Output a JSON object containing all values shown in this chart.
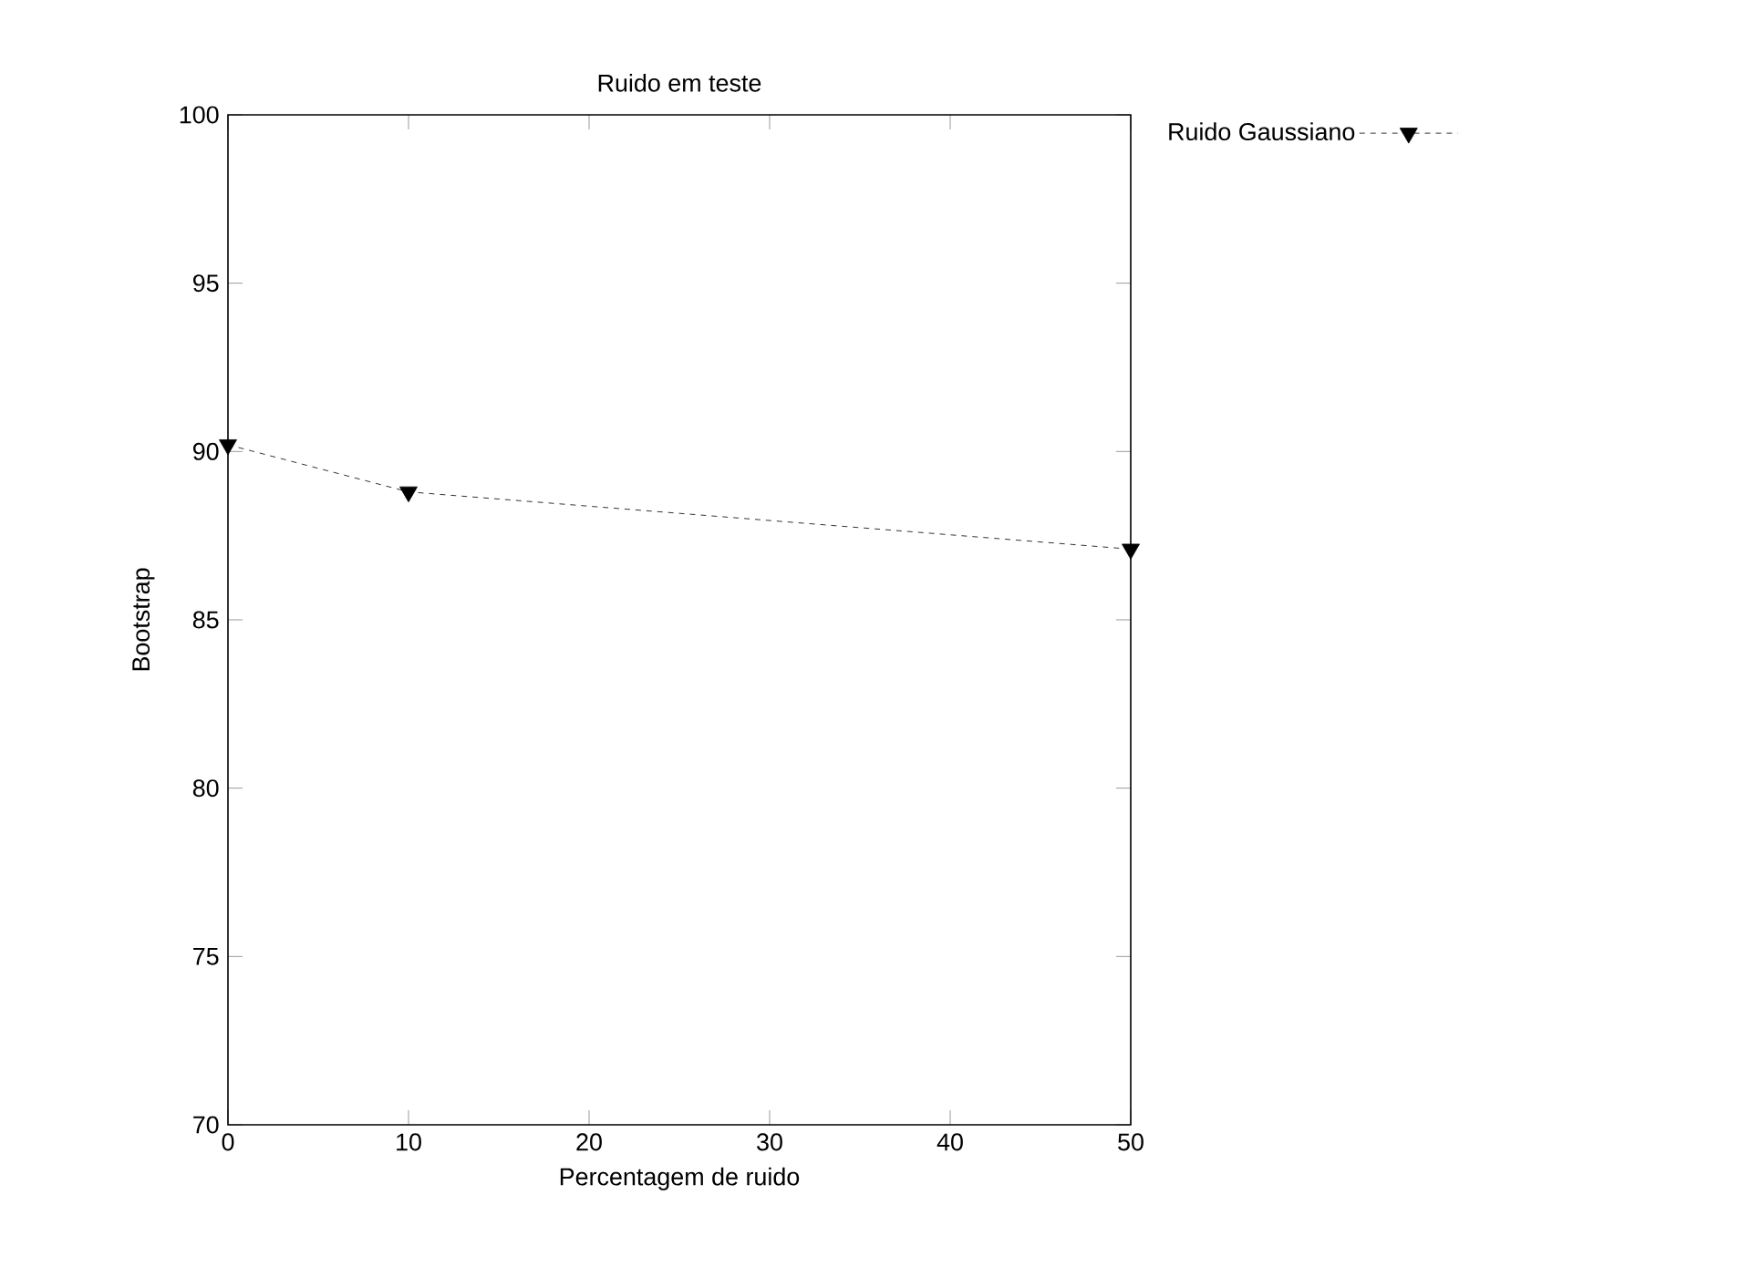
{
  "chart_data": {
    "type": "line",
    "title": "Ruido em teste",
    "xlabel": "Percentagem de ruido",
    "ylabel": "Bootstrap",
    "x": [
      0,
      10,
      50
    ],
    "series": [
      {
        "name": "Ruido Gaussiano",
        "color": "#000000",
        "values": [
          90.2,
          88.8,
          87.1
        ],
        "marker": "triangle",
        "line_style": "dashed"
      }
    ],
    "xlim": [
      0,
      50
    ],
    "xticks": [
      0,
      10,
      20,
      30,
      40,
      50
    ],
    "ylim": [
      70,
      100
    ],
    "yticks": [
      70,
      75,
      80,
      85,
      90,
      95,
      100
    ],
    "legend": "top right",
    "grid": false
  }
}
